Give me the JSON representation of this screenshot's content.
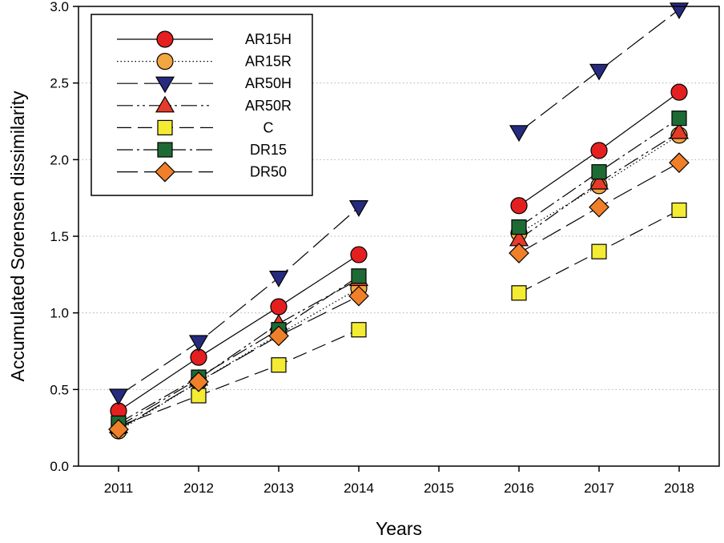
{
  "chart_data": {
    "type": "line",
    "title": "",
    "xlabel": "Years",
    "ylabel": "Accumulated Sorensen dissimilarity",
    "x_categories": [
      "2011",
      "2012",
      "2013",
      "2014",
      "2015",
      "2016",
      "2017",
      "2018"
    ],
    "ylim": [
      0.0,
      3.0
    ],
    "yticks": [
      "0.0",
      "0.5",
      "1.0",
      "1.5",
      "2.0",
      "2.5",
      "3.0"
    ],
    "grid": "horizontal dotted",
    "legend_position": "top-left",
    "series": [
      {
        "name": "AR15H",
        "marker": "circle",
        "color": "#e41f1f",
        "dash": "solid",
        "segments": [
          {
            "x": [
              "2011",
              "2012",
              "2013",
              "2014"
            ],
            "y": [
              0.36,
              0.71,
              1.04,
              1.38
            ]
          },
          {
            "x": [
              "2016",
              "2017",
              "2018"
            ],
            "y": [
              1.7,
              2.06,
              2.44
            ]
          }
        ]
      },
      {
        "name": "AR15R",
        "marker": "circle",
        "color": "#f2a640",
        "dash": "dotted",
        "segments": [
          {
            "x": [
              "2011",
              "2012",
              "2013",
              "2014"
            ],
            "y": [
              0.23,
              0.55,
              0.86,
              1.16
            ]
          },
          {
            "x": [
              "2016",
              "2017",
              "2018"
            ],
            "y": [
              1.52,
              1.83,
              2.16
            ]
          }
        ]
      },
      {
        "name": "AR50H",
        "marker": "triangle-down",
        "color": "#262b7e",
        "dash": "long-dash",
        "segments": [
          {
            "x": [
              "2011",
              "2012",
              "2013",
              "2014"
            ],
            "y": [
              0.46,
              0.81,
              1.23,
              1.69
            ]
          },
          {
            "x": [
              "2016",
              "2017",
              "2018"
            ],
            "y": [
              2.18,
              2.58,
              2.98
            ]
          }
        ]
      },
      {
        "name": "AR50R",
        "marker": "triangle-up",
        "color": "#e63b2a",
        "dash": "dash-dot-dot",
        "segments": [
          {
            "x": [
              "2011",
              "2012",
              "2013",
              "2014"
            ],
            "y": [
              0.26,
              0.57,
              0.93,
              1.22
            ]
          },
          {
            "x": [
              "2016",
              "2017",
              "2018"
            ],
            "y": [
              1.48,
              1.85,
              2.18
            ]
          }
        ]
      },
      {
        "name": "C",
        "marker": "square",
        "color": "#f4eb33",
        "dash": "dash",
        "segments": [
          {
            "x": [
              "2011",
              "2012",
              "2013",
              "2014"
            ],
            "y": [
              0.26,
              0.46,
              0.66,
              0.89
            ]
          },
          {
            "x": [
              "2016",
              "2017",
              "2018"
            ],
            "y": [
              1.13,
              1.4,
              1.67
            ]
          }
        ]
      },
      {
        "name": "DR15",
        "marker": "square",
        "color": "#1d6a34",
        "dash": "dash-dot",
        "segments": [
          {
            "x": [
              "2011",
              "2012",
              "2013",
              "2014"
            ],
            "y": [
              0.28,
              0.58,
              0.89,
              1.24
            ]
          },
          {
            "x": [
              "2016",
              "2017",
              "2018"
            ],
            "y": [
              1.56,
              1.92,
              2.27
            ]
          }
        ]
      },
      {
        "name": "DR50",
        "marker": "diamond",
        "color": "#f07f2a",
        "dash": "long-dash",
        "segments": [
          {
            "x": [
              "2011",
              "2012",
              "2013",
              "2014"
            ],
            "y": [
              0.24,
              0.55,
              0.85,
              1.11
            ]
          },
          {
            "x": [
              "2016",
              "2017",
              "2018"
            ],
            "y": [
              1.39,
              1.69,
              1.98
            ]
          }
        ]
      }
    ]
  }
}
